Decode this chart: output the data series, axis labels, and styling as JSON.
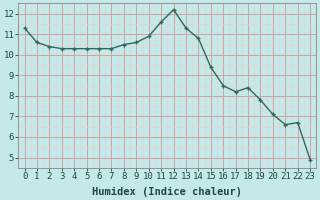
{
  "x": [
    0,
    1,
    2,
    3,
    4,
    5,
    6,
    7,
    8,
    9,
    10,
    11,
    12,
    13,
    14,
    15,
    16,
    17,
    18,
    19,
    20,
    21,
    22,
    23
  ],
  "y": [
    11.3,
    10.6,
    10.4,
    10.3,
    10.3,
    10.3,
    10.3,
    10.3,
    10.5,
    10.6,
    10.9,
    11.6,
    12.2,
    11.3,
    10.8,
    9.4,
    8.5,
    8.2,
    8.4,
    7.8,
    7.1,
    6.6,
    6.7,
    4.9
  ],
  "line_color": "#2d6b5e",
  "marker": "+",
  "bg_color": "#c5e8e8",
  "grid_major_color": "#d4a0a0",
  "grid_minor_color": "#e8d0d0",
  "xlabel": "Humidex (Indice chaleur)",
  "xlim": [
    -0.5,
    23.5
  ],
  "ylim": [
    4.5,
    12.5
  ],
  "yticks": [
    5,
    6,
    7,
    8,
    9,
    10,
    11,
    12
  ],
  "xticks": [
    0,
    1,
    2,
    3,
    4,
    5,
    6,
    7,
    8,
    9,
    10,
    11,
    12,
    13,
    14,
    15,
    16,
    17,
    18,
    19,
    20,
    21,
    22,
    23
  ],
  "font_color": "#1a4a40",
  "xlabel_fontsize": 7.5,
  "tick_fontsize": 6.5,
  "linewidth": 1.0,
  "markersize": 3.5,
  "markeredgewidth": 1.0
}
